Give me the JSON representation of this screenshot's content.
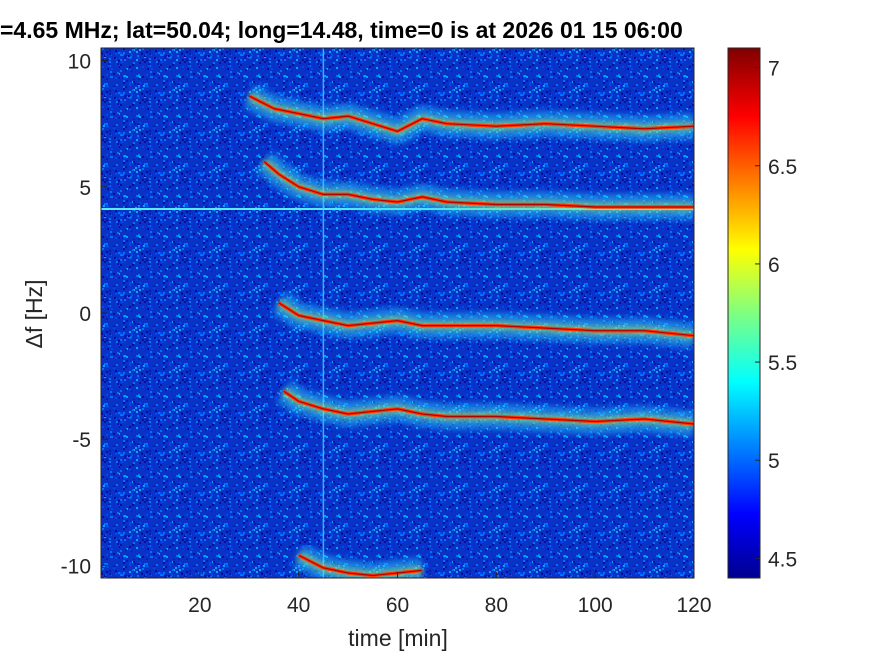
{
  "chart_data": {
    "type": "heatmap",
    "title": "=4.65 MHz;  lat=50.04; long=14.48, time=0 is at 2026 01 15 06:00",
    "xlabel": "time [min]",
    "ylabel": "Δf [Hz]",
    "xlim": [
      0,
      120
    ],
    "ylim": [
      -10.5,
      10.5
    ],
    "xticks": [
      20,
      40,
      60,
      80,
      100,
      120
    ],
    "xtick_labels": [
      "20",
      "40",
      "60",
      "80",
      "100",
      "120"
    ],
    "yticks": [
      10,
      5,
      0,
      -5,
      -10
    ],
    "ytick_labels": [
      "10",
      "5",
      "0",
      "-5",
      "-10"
    ],
    "colorbar": {
      "colormap": "jet",
      "range": [
        4.4,
        7.1
      ],
      "ticks": [
        7,
        6.5,
        6,
        5.5,
        5,
        4.5
      ],
      "tick_labels": [
        "7",
        "6.5",
        "6",
        "5.5",
        "5",
        "4.5"
      ]
    },
    "traces": [
      {
        "name": "",
        "x": [
          30,
          35,
          40,
          45,
          50,
          55,
          60,
          65,
          70,
          80,
          90,
          100,
          110,
          120
        ],
        "y": [
          8.6,
          8.1,
          7.9,
          7.7,
          7.8,
          7.5,
          7.2,
          7.7,
          7.5,
          7.4,
          7.5,
          7.4,
          7.3,
          7.4
        ]
      },
      {
        "name": "",
        "x": [
          33,
          36,
          40,
          45,
          50,
          55,
          60,
          65,
          70,
          80,
          90,
          100,
          110,
          120
        ],
        "y": [
          6.0,
          5.5,
          5.0,
          4.7,
          4.7,
          4.5,
          4.4,
          4.6,
          4.4,
          4.3,
          4.3,
          4.2,
          4.2,
          4.2
        ]
      },
      {
        "name": "",
        "x": [
          36,
          40,
          45,
          50,
          55,
          60,
          65,
          70,
          80,
          90,
          100,
          110,
          120
        ],
        "y": [
          0.4,
          -0.1,
          -0.3,
          -0.5,
          -0.4,
          -0.3,
          -0.5,
          -0.5,
          -0.5,
          -0.6,
          -0.7,
          -0.7,
          -0.9
        ]
      },
      {
        "name": "",
        "x": [
          37,
          40,
          45,
          50,
          55,
          60,
          65,
          70,
          80,
          90,
          100,
          110,
          120
        ],
        "y": [
          -3.1,
          -3.5,
          -3.8,
          -4.0,
          -3.9,
          -3.8,
          -4.0,
          -4.1,
          -4.1,
          -4.2,
          -4.3,
          -4.2,
          -4.4
        ]
      },
      {
        "name": "",
        "x": [
          40,
          45,
          50,
          55,
          60,
          65
        ],
        "y": [
          -9.6,
          -10.1,
          -10.3,
          -10.4,
          -10.3,
          -10.2
        ]
      }
    ],
    "horizontal_line_y": 4.12,
    "vertical_line_x": 45
  }
}
